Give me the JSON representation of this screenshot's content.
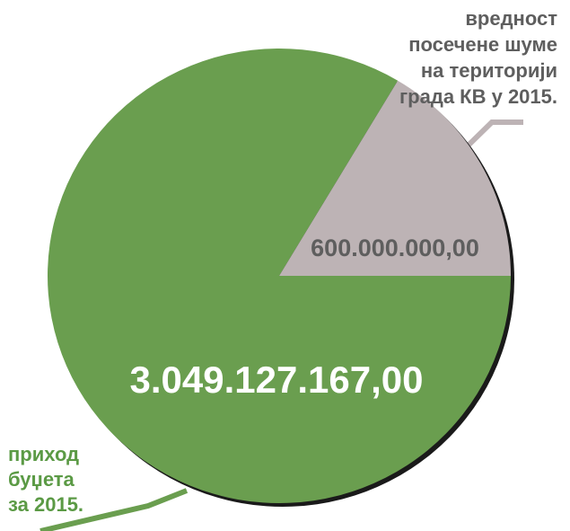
{
  "chart_data": {
    "type": "pie",
    "categories": [
      "приход буџета за 2015.",
      "вредност посечене шуме на територији града КВ у 2015."
    ],
    "values": [
      3049127167.0,
      600000000.0
    ],
    "value_labels": [
      "3.049.127.167,00",
      "600.000.000,00"
    ],
    "legend": {
      "green_lines": [
        "приход",
        "буџета",
        "за 2015."
      ],
      "gray_lines": [
        "вредност",
        "посечене шуме",
        "на територији",
        "града КВ у 2015."
      ]
    },
    "colors": {
      "green": "#6a9e4f",
      "gray": "#bdb3b5",
      "gray_text": "#5e5e5e",
      "green_text": "#5b9a45",
      "value_white": "#ffffff",
      "shadow": "#1a1a1a"
    },
    "title": "",
    "xlabel": "",
    "ylabel": ""
  }
}
